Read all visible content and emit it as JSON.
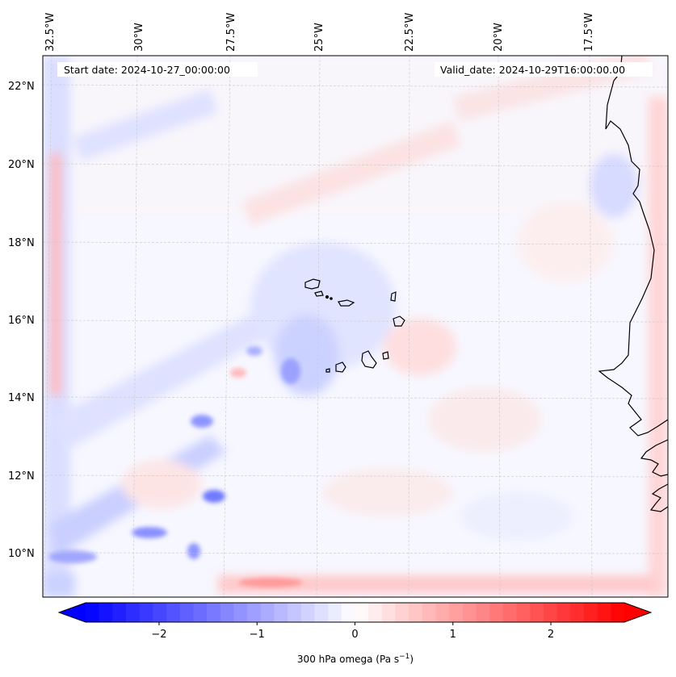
{
  "map": {
    "start_date": "Start date: 2024-10-27_00:00:00",
    "valid_date": "Valid_date: 2024-10-29T16:00:00.00",
    "lon_labels": [
      "32.5°W",
      "30°W",
      "27.5°W",
      "25°W",
      "22.5°W",
      "20°W",
      "17.5°W"
    ],
    "lat_labels": [
      "22°N",
      "20°N",
      "18°N",
      "16°N",
      "14°N",
      "12°N",
      "10°N"
    ],
    "gridlines": true,
    "coastline_color": "#000000"
  },
  "colorbar": {
    "label": "300 hPa omega (Pa s",
    "label_sup": "−1",
    "label_close": ")",
    "ticks": [
      "−2",
      "−1",
      "0",
      "1",
      "2"
    ],
    "tick_values": [
      -2,
      -1,
      0,
      1,
      2
    ],
    "range": [
      -2.75,
      2.75
    ],
    "extend": "both",
    "colormap": "bwr",
    "low_color": "#0000ff",
    "mid_color": "#ffffff",
    "high_color": "#ff0000"
  }
}
